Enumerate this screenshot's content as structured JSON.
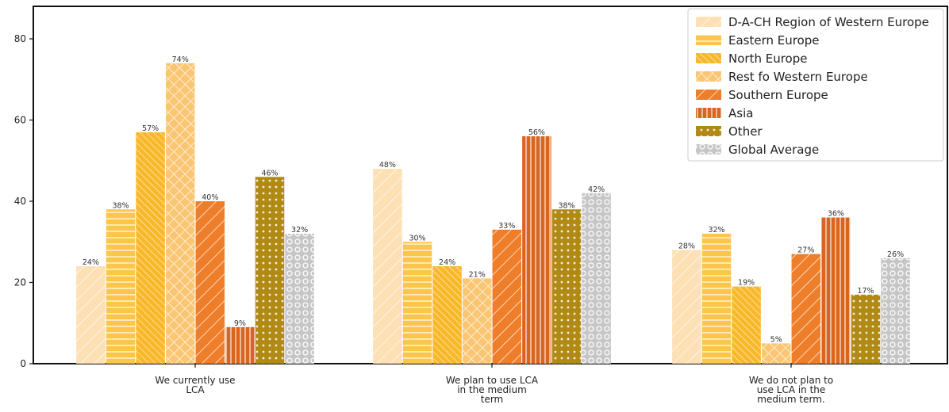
{
  "chart_data": {
    "type": "bar",
    "ylim": [
      0,
      88
    ],
    "yticks": [
      0,
      20,
      40,
      60,
      80
    ],
    "grid": false,
    "legend_position": "top-right",
    "categories": [
      [
        "We currently use",
        "LCA"
      ],
      [
        "We plan to use LCA",
        "in the medium",
        "term"
      ],
      [
        "We do not plan to",
        "use LCA in the",
        "medium term."
      ]
    ],
    "series": [
      {
        "name": "D-A-CH Region of Western Europe",
        "values": [
          24,
          48,
          28
        ],
        "labels": [
          "24%",
          "48%",
          "28%"
        ],
        "color": "#fde0b4",
        "pattern": "diag-left"
      },
      {
        "name": "Eastern Europe",
        "values": [
          38,
          30,
          32
        ],
        "labels": [
          "38%",
          "30%",
          "32%"
        ],
        "color": "#fcc64a",
        "pattern": "horizontal"
      },
      {
        "name": "North Europe",
        "values": [
          57,
          24,
          19
        ],
        "labels": [
          "57%",
          "24%",
          "19%"
        ],
        "color": "#f9b82a",
        "pattern": "diag-right"
      },
      {
        "name": "Rest fo Western Europe",
        "values": [
          74,
          21,
          5
        ],
        "labels": [
          "74%",
          "21%",
          "5%"
        ],
        "color": "#fbc673",
        "pattern": "crosshatch"
      },
      {
        "name": "Southern Europe",
        "values": [
          40,
          33,
          27
        ],
        "labels": [
          "40%",
          "33%",
          "27%"
        ],
        "color": "#ef7e2a",
        "pattern": "diag-left"
      },
      {
        "name": "Asia",
        "values": [
          9,
          56,
          36
        ],
        "labels": [
          "9%",
          "56%",
          "36%"
        ],
        "color": "#d8661e",
        "pattern": "vertical"
      },
      {
        "name": "Other",
        "values": [
          46,
          38,
          17
        ],
        "labels": [
          "46%",
          "38%",
          "17%"
        ],
        "color": "#b08a15",
        "pattern": "dots"
      },
      {
        "name": "Global Average",
        "values": [
          32,
          42,
          26
        ],
        "labels": [
          "32%",
          "42%",
          "26%"
        ],
        "color": "#c6c6c6",
        "pattern": "circles"
      }
    ]
  }
}
